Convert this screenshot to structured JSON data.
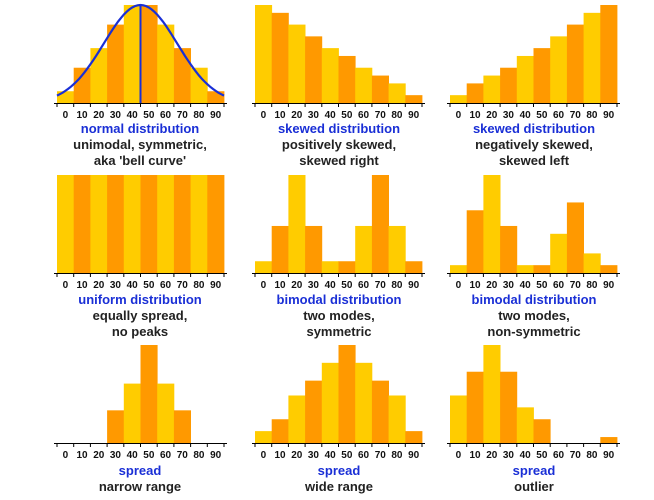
{
  "palette": {
    "light": "#ffcc00",
    "dark": "#ff9900",
    "curve": "#1a2fd6",
    "title": "#1a2fd6",
    "text": "#222222",
    "axis": "#000000"
  },
  "chart_data": [
    {
      "type": "bar",
      "title": "normal distribution",
      "subtitle": [
        "unimodal, symmetric,",
        "aka 'bell curve'"
      ],
      "categories": [
        "0",
        "10",
        "20",
        "30",
        "40",
        "50",
        "60",
        "70",
        "80",
        "90"
      ],
      "values": [
        3,
        9,
        14,
        20,
        25,
        25,
        20,
        14,
        9,
        3
      ],
      "ylim": [
        0,
        25
      ],
      "overlay": "bell-curve"
    },
    {
      "type": "bar",
      "title": "skewed distribution",
      "subtitle": [
        "positively skewed,",
        "skewed right"
      ],
      "categories": [
        "0",
        "10",
        "20",
        "30",
        "40",
        "50",
        "60",
        "70",
        "80",
        "90"
      ],
      "values": [
        25,
        23,
        20,
        17,
        14,
        12,
        9,
        7,
        5,
        2
      ],
      "ylim": [
        0,
        25
      ]
    },
    {
      "type": "bar",
      "title": "skewed distribution",
      "subtitle": [
        "negatively skewed,",
        "skewed left"
      ],
      "categories": [
        "0",
        "10",
        "20",
        "30",
        "40",
        "50",
        "60",
        "70",
        "80",
        "90"
      ],
      "values": [
        2,
        5,
        7,
        9,
        12,
        14,
        17,
        20,
        23,
        25
      ],
      "ylim": [
        0,
        25
      ]
    },
    {
      "type": "bar",
      "title": "uniform distribution",
      "subtitle": [
        "equally spread,",
        "no peaks"
      ],
      "categories": [
        "0",
        "10",
        "20",
        "30",
        "40",
        "50",
        "60",
        "70",
        "80",
        "90"
      ],
      "values": [
        25,
        25,
        25,
        25,
        25,
        25,
        25,
        25,
        25,
        25
      ],
      "ylim": [
        0,
        25
      ]
    },
    {
      "type": "bar",
      "title": "bimodal distribution",
      "subtitle": [
        "two modes,",
        "symmetric"
      ],
      "categories": [
        "0",
        "10",
        "20",
        "30",
        "40",
        "50",
        "60",
        "70",
        "80",
        "90"
      ],
      "values": [
        3,
        12,
        25,
        12,
        3,
        3,
        12,
        25,
        12,
        3
      ],
      "ylim": [
        0,
        25
      ]
    },
    {
      "type": "bar",
      "title": "bimodal distribution",
      "subtitle": [
        "two modes,",
        "non-symmetric"
      ],
      "categories": [
        "0",
        "10",
        "20",
        "30",
        "40",
        "50",
        "60",
        "70",
        "80",
        "90"
      ],
      "values": [
        2,
        16,
        25,
        12,
        2,
        2,
        10,
        18,
        5,
        2
      ],
      "ylim": [
        0,
        25
      ]
    },
    {
      "type": "bar",
      "title": "spread",
      "subtitle": [
        "narrow range"
      ],
      "categories": [
        "0",
        "10",
        "20",
        "30",
        "40",
        "50",
        "60",
        "70",
        "80",
        "90"
      ],
      "values": [
        0,
        0,
        0,
        11,
        20,
        33,
        20,
        11,
        0,
        0
      ],
      "ylim": [
        0,
        33
      ]
    },
    {
      "type": "bar",
      "title": "spread",
      "subtitle": [
        "wide range"
      ],
      "categories": [
        "0",
        "10",
        "20",
        "30",
        "40",
        "50",
        "60",
        "70",
        "80",
        "90"
      ],
      "values": [
        4,
        8,
        16,
        21,
        27,
        33,
        27,
        21,
        16,
        4
      ],
      "ylim": [
        0,
        33
      ]
    },
    {
      "type": "bar",
      "title": "spread",
      "subtitle": [
        "outlier"
      ],
      "categories": [
        "0",
        "10",
        "20",
        "30",
        "40",
        "50",
        "60",
        "70",
        "80",
        "90"
      ],
      "values": [
        16,
        24,
        33,
        24,
        12,
        8,
        0,
        0,
        0,
        2
      ],
      "ylim": [
        0,
        33
      ]
    }
  ]
}
